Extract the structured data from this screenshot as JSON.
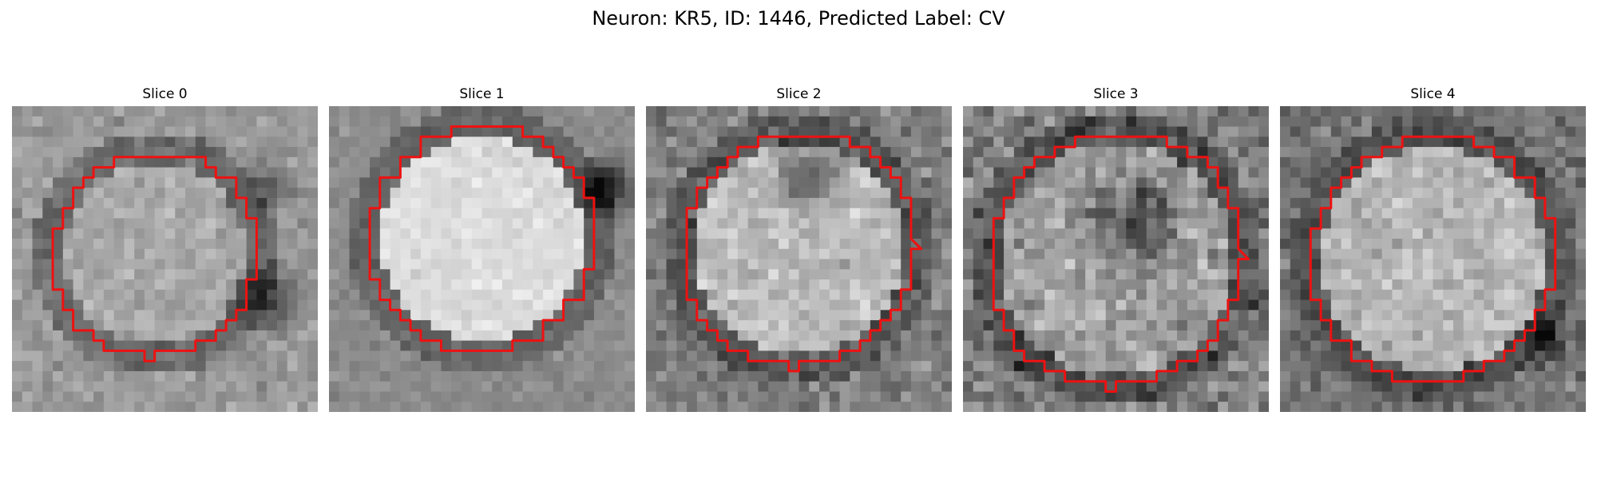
{
  "figure": {
    "title": "Neuron: KR5, ID: 1446, Predicted Label: CV"
  },
  "slices": [
    {
      "label": "Slice 0"
    },
    {
      "label": "Slice 1"
    },
    {
      "label": "Slice 2"
    },
    {
      "label": "Slice 3"
    },
    {
      "label": "Slice 4"
    }
  ],
  "colors": {
    "contour": "#ee1111",
    "colormap": "grayscale"
  }
}
